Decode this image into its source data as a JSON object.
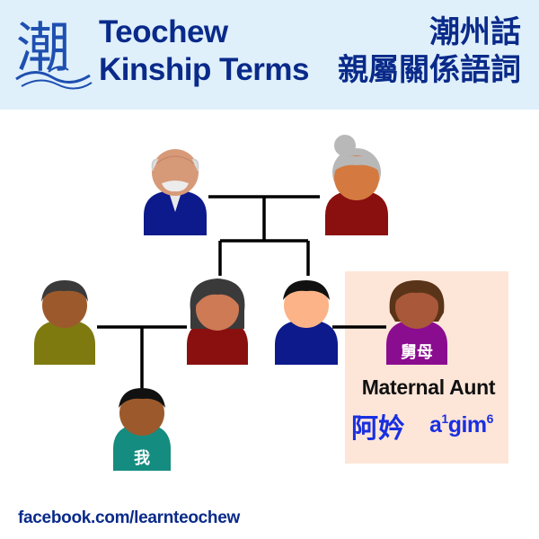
{
  "header": {
    "logo_char": "潮",
    "title_en_line1": "Teochew",
    "title_en_line2": "Kinship Terms",
    "title_zh_line1": "潮州話",
    "title_zh_line2": "親屬關係語詞"
  },
  "tree": {
    "highlight_badge": "舅母",
    "self_badge": "我"
  },
  "term": {
    "english": "Maternal Aunt",
    "chinese": "阿妗",
    "romanization": {
      "syllable1": "a",
      "tone1": "1",
      "syllable2": "gim",
      "tone2": "6"
    }
  },
  "footer": {
    "link": "facebook.com/learnteochew"
  },
  "colors": {
    "header_bg": "#dff0fb",
    "title": "#0a2a8a",
    "term_blue": "#1a2fe0",
    "highlight_bg": "#fde6d8"
  }
}
